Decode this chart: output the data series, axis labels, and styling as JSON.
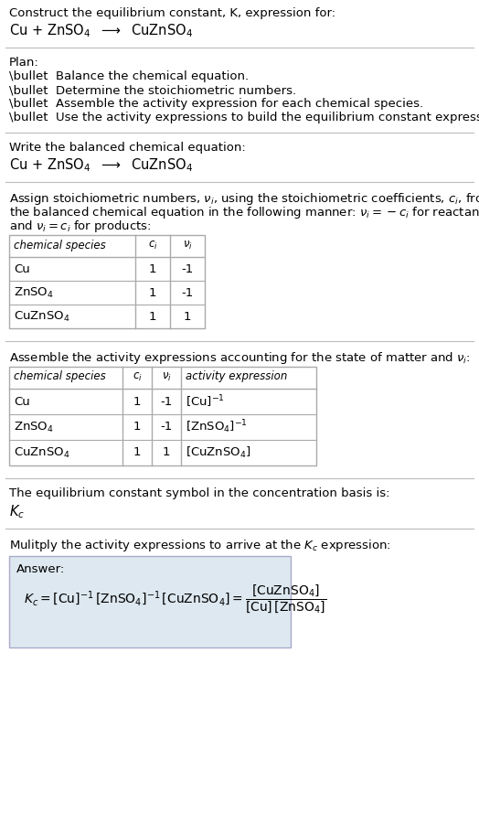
{
  "bg_color": "#ffffff",
  "text_color": "#000000",
  "fig_width": 5.24,
  "fig_height": 8.89,
  "dpi": 100,
  "sections": {
    "title1": "Construct the equilibrium constant, K, expression for:",
    "title2_latex": "Cu + ZnSO$_4$  $\\longrightarrow$  CuZnSO$_4$",
    "plan_header": "Plan:",
    "plan_items": [
      "\\bullet  Balance the chemical equation.",
      "\\bullet  Determine the stoichiometric numbers.",
      "\\bullet  Assemble the activity expression for each chemical species.",
      "\\bullet  Use the activity expressions to build the equilibrium constant expression."
    ],
    "balanced_header": "Write the balanced chemical equation:",
    "balanced_eq": "Cu + ZnSO$_4$  $\\longrightarrow$  CuZnSO$_4$",
    "stoich_line1": "Assign stoichiometric numbers, $\\nu_i$, using the stoichiometric coefficients, $c_i$, from",
    "stoich_line2": "the balanced chemical equation in the following manner: $\\nu_i = -c_i$ for reactants",
    "stoich_line3": "and $\\nu_i = c_i$ for products:",
    "table1_headers": [
      "chemical species",
      "c_i",
      "v_i"
    ],
    "table1_rows": [
      [
        "Cu",
        "1",
        "-1"
      ],
      [
        "ZnSO$_4$",
        "1",
        "-1"
      ],
      [
        "CuZnSO$_4$",
        "1",
        "1"
      ]
    ],
    "activity_line": "Assemble the activity expressions accounting for the state of matter and $\\nu_i$:",
    "table2_headers": [
      "chemical species",
      "c_i",
      "v_i",
      "activity expression"
    ],
    "table2_rows": [
      [
        "Cu",
        "1",
        "-1",
        "$[\\mathrm{Cu}]^{-1}$"
      ],
      [
        "ZnSO$_4$",
        "1",
        "-1",
        "$[\\mathrm{ZnSO_4}]^{-1}$"
      ],
      [
        "CuZnSO$_4$",
        "1",
        "1",
        "$[\\mathrm{CuZnSO_4}]$"
      ]
    ],
    "kc_line": "The equilibrium constant symbol in the concentration basis is:",
    "kc_symbol": "$K_c$",
    "multiply_line": "Mulitply the activity expressions to arrive at the $K_c$ expression:",
    "answer_label": "Answer:",
    "answer_kc": "$K_c = [\\mathrm{Cu}]^{-1}\\,[\\mathrm{ZnSO_4}]^{-1}\\,[\\mathrm{CuZnSO_4}] = \\dfrac{[\\mathrm{CuZnSO_4}]}{[\\mathrm{Cu}]\\,[\\mathrm{ZnSO_4}]}$"
  }
}
